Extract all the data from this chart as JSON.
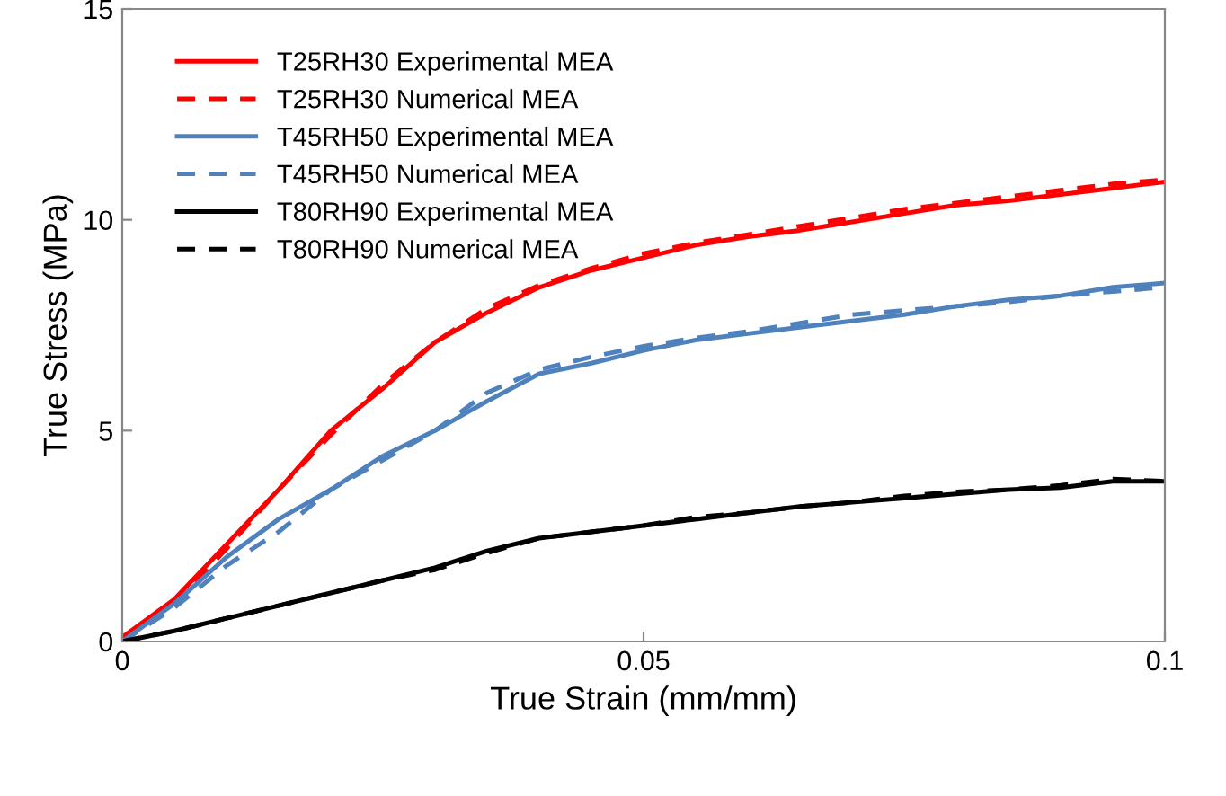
{
  "chart_data": {
    "type": "line",
    "xlabel": "True Strain (mm/mm)",
    "ylabel": "True Stress (MPa)",
    "x": [
      0,
      0.005,
      0.01,
      0.015,
      0.02,
      0.025,
      0.03,
      0.035,
      0.04,
      0.045,
      0.05,
      0.055,
      0.06,
      0.065,
      0.07,
      0.075,
      0.08,
      0.085,
      0.09,
      0.095,
      0.1
    ],
    "series": [
      {
        "name": "T25RH30 Experimental MEA",
        "color": "#ff0000",
        "line_style": "solid",
        "values": [
          0.1,
          1.0,
          2.3,
          3.6,
          5.0,
          6.0,
          7.1,
          7.8,
          8.4,
          8.8,
          9.1,
          9.4,
          9.6,
          9.75,
          9.95,
          10.15,
          10.35,
          10.45,
          10.6,
          10.75,
          10.9
        ]
      },
      {
        "name": "T25RH30 Numerical MEA",
        "color": "#ff0000",
        "line_style": "dashed",
        "values": [
          0,
          0.9,
          2.2,
          3.6,
          4.9,
          6.1,
          7.1,
          7.9,
          8.45,
          8.85,
          9.2,
          9.45,
          9.65,
          9.85,
          10.05,
          10.25,
          10.4,
          10.55,
          10.7,
          10.85,
          10.95
        ]
      },
      {
        "name": "T45RH50 Experimental MEA",
        "color": "#4f81bd",
        "line_style": "solid",
        "values": [
          0,
          0.9,
          2.0,
          2.9,
          3.6,
          4.4,
          5.0,
          5.7,
          6.35,
          6.6,
          6.9,
          7.15,
          7.3,
          7.45,
          7.6,
          7.75,
          7.95,
          8.1,
          8.2,
          8.4,
          8.5
        ]
      },
      {
        "name": "T45RH50 Numerical MEA",
        "color": "#4f81bd",
        "line_style": "dashed",
        "values": [
          0,
          0.8,
          1.8,
          2.6,
          3.6,
          4.3,
          5.0,
          5.9,
          6.45,
          6.75,
          7.0,
          7.2,
          7.35,
          7.55,
          7.75,
          7.85,
          7.95,
          8.05,
          8.2,
          8.3,
          8.4
        ]
      },
      {
        "name": "T80RH90 Experimental MEA",
        "color": "#000000",
        "line_style": "solid",
        "values": [
          0,
          0.25,
          0.55,
          0.85,
          1.15,
          1.45,
          1.75,
          2.15,
          2.45,
          2.6,
          2.75,
          2.9,
          3.05,
          3.2,
          3.3,
          3.4,
          3.5,
          3.6,
          3.65,
          3.8,
          3.8
        ]
      },
      {
        "name": "T80RH90 Numerical MEA",
        "color": "#000000",
        "line_style": "dashed",
        "values": [
          0,
          0.25,
          0.55,
          0.85,
          1.15,
          1.45,
          1.7,
          2.1,
          2.45,
          2.6,
          2.75,
          2.95,
          3.05,
          3.2,
          3.3,
          3.45,
          3.55,
          3.6,
          3.7,
          3.85,
          3.8
        ]
      }
    ],
    "xlim": [
      0,
      0.1
    ],
    "xticks": [
      0,
      0.05,
      0.1
    ],
    "ylim": [
      0,
      15
    ],
    "yticks": [
      0,
      5,
      10,
      15
    ],
    "grid": false,
    "legend": "top left"
  }
}
